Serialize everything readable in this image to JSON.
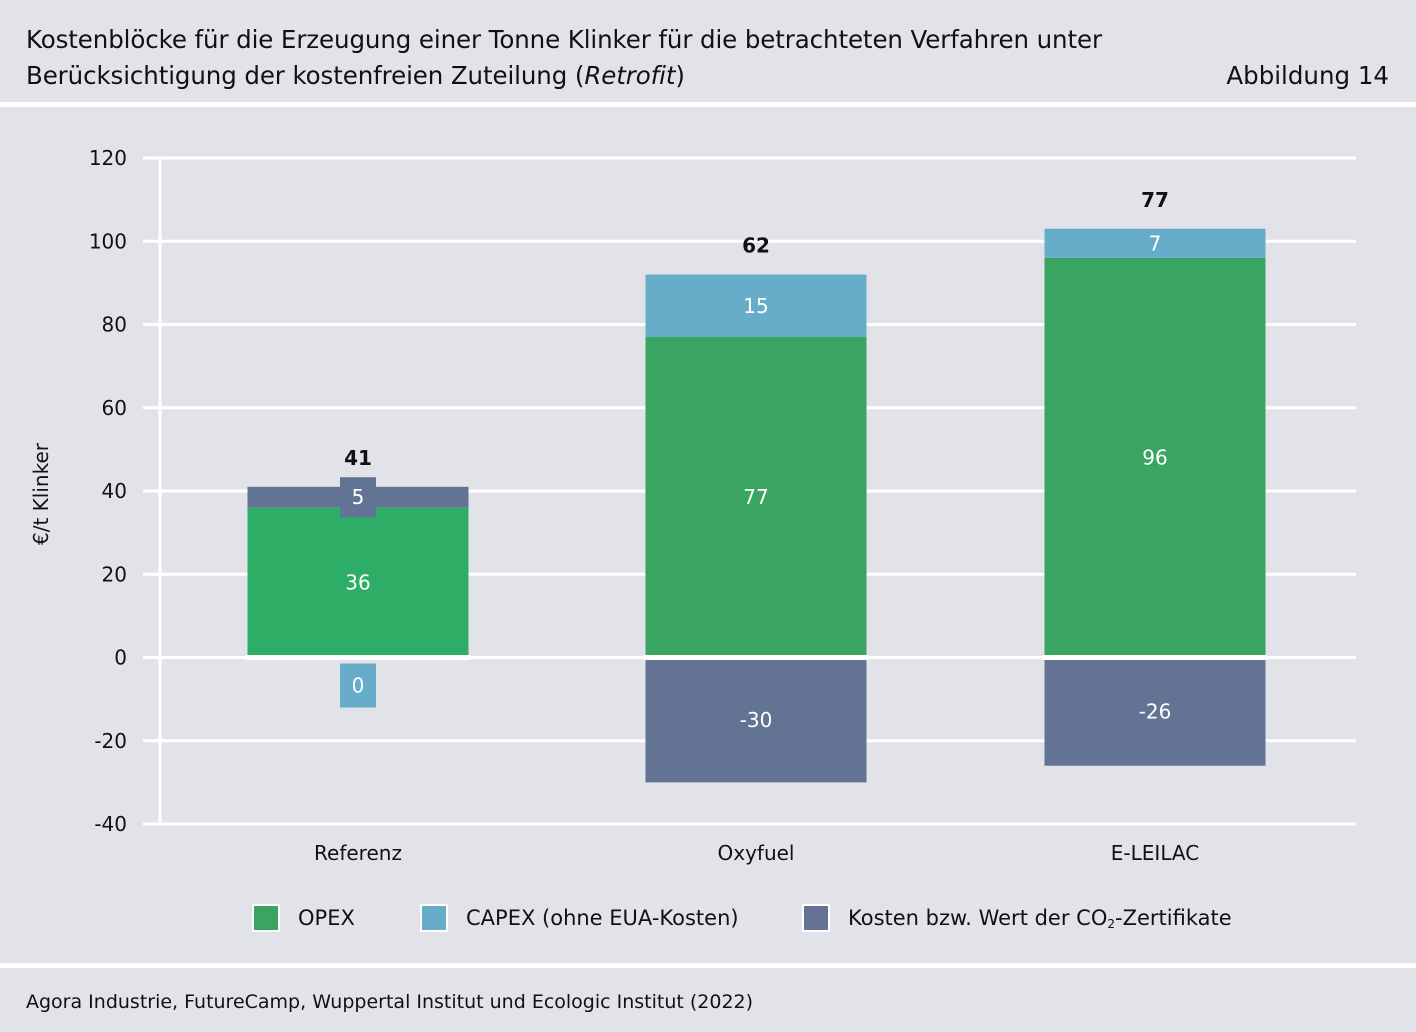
{
  "header": {
    "title_part1": "Kostenblöcke für die Erzeugung einer Tonne Klinker für die betrachteten Verfahren unter Berücksichtigung der kostenfreien Zuteilung (",
    "title_italic": "Retrofit",
    "title_part2": ")",
    "figure_label": "Abbildung 14"
  },
  "footer": {
    "source": "Agora Industrie, FutureCamp, Wuppertal Institut und Ecologic Institut (2022)"
  },
  "colors": {
    "opex": "#3aa562",
    "opex_referenz": "#2ead67",
    "capex": "#67adc9",
    "co2": "#627394",
    "grid": "#ffffff",
    "background": "#e2e3e8"
  },
  "chart_data": {
    "type": "bar",
    "stacked": true,
    "categories": [
      "Referenz",
      "Oxyfuel",
      "E-LEILAC"
    ],
    "series": [
      {
        "name": "OPEX",
        "values": [
          36,
          77,
          96
        ]
      },
      {
        "name": "CAPEX (ohne EUA-Kosten)",
        "values": [
          0,
          15,
          7
        ]
      },
      {
        "name": "Kosten bzw. Wert der CO2-Zertifikate",
        "values": [
          5,
          -30,
          -26
        ]
      }
    ],
    "totals": [
      41,
      62,
      77
    ],
    "ylabel": "€/t Klinker",
    "xlabel": "",
    "ylim": [
      -40,
      120
    ],
    "yticks": [
      -40,
      -20,
      0,
      20,
      40,
      60,
      80,
      100,
      120
    ],
    "grid": true,
    "legend": {
      "placement": "bottom",
      "items": [
        {
          "label": "OPEX",
          "color": "#3aa562"
        },
        {
          "label_pre": "CAPEX (ohne EUA-Kosten)",
          "color": "#67adc9"
        },
        {
          "label_pre": "Kosten bzw. Wert der CO",
          "label_sub": "2",
          "label_post": "-Zertifikate",
          "color": "#627394"
        }
      ]
    }
  }
}
